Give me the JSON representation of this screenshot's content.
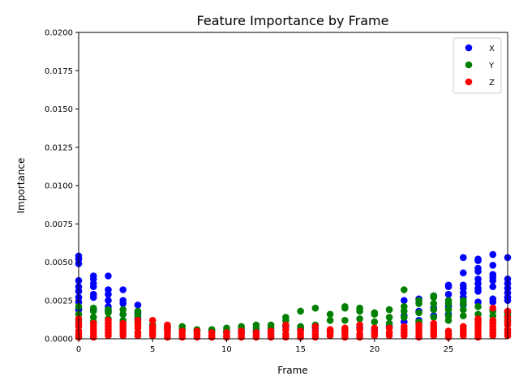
{
  "chart_data": {
    "type": "scatter",
    "title": "Feature Importance by Frame",
    "xlabel": "Frame",
    "ylabel": "Importance",
    "xlim": [
      0,
      29
    ],
    "ylim": [
      0,
      0.02
    ],
    "x_ticks": [
      0,
      5,
      10,
      15,
      20,
      25
    ],
    "x_tick_labels": [
      "0",
      "5",
      "10",
      "15",
      "20",
      "25"
    ],
    "y_ticks": [
      0,
      0.0025,
      0.005,
      0.0075,
      0.01,
      0.0125,
      0.015,
      0.0175,
      0.02
    ],
    "y_tick_labels": [
      "0.0000",
      "0.0025",
      "0.0050",
      "0.0075",
      "0.0100",
      "0.0125",
      "0.0150",
      "0.0175",
      "0.0200"
    ],
    "grid": false,
    "legend_position": "top-right",
    "series": [
      {
        "name": "X",
        "color": "#0000ff",
        "points": [
          [
            0,
            0.0054
          ],
          [
            0,
            0.0052
          ],
          [
            0,
            0.0049
          ],
          [
            0,
            0.0038
          ],
          [
            0,
            0.0034
          ],
          [
            0,
            0.0031
          ],
          [
            0,
            0.0027
          ],
          [
            0,
            0.0024
          ],
          [
            0,
            0.0019
          ],
          [
            1,
            0.0041
          ],
          [
            1,
            0.0039
          ],
          [
            1,
            0.0036
          ],
          [
            1,
            0.0034
          ],
          [
            1,
            0.0029
          ],
          [
            1,
            0.0027
          ],
          [
            1,
            0.0019
          ],
          [
            2,
            0.0041
          ],
          [
            2,
            0.0032
          ],
          [
            2,
            0.0029
          ],
          [
            2,
            0.0025
          ],
          [
            2,
            0.0021
          ],
          [
            2,
            0.0018
          ],
          [
            3,
            0.0032
          ],
          [
            3,
            0.0025
          ],
          [
            3,
            0.0023
          ],
          [
            3,
            0.0016
          ],
          [
            4,
            0.0022
          ],
          [
            4,
            0.0017
          ],
          [
            4,
            0.0013
          ],
          [
            5,
            0.0009
          ],
          [
            6,
            0.0007
          ],
          [
            7,
            0.0005
          ],
          [
            8,
            0.0005
          ],
          [
            9,
            0.0004
          ],
          [
            10,
            0.0004
          ],
          [
            11,
            0.0004
          ],
          [
            12,
            0.0005
          ],
          [
            13,
            0.0005
          ],
          [
            14,
            0.0008
          ],
          [
            15,
            0.0006
          ],
          [
            16,
            0.0007
          ],
          [
            17,
            0.0005
          ],
          [
            18,
            0.0006
          ],
          [
            19,
            0.0007
          ],
          [
            20,
            0.0006
          ],
          [
            21,
            0.0008
          ],
          [
            22,
            0.0025
          ],
          [
            22,
            0.0015
          ],
          [
            22,
            0.0011
          ],
          [
            23,
            0.0026
          ],
          [
            23,
            0.0018
          ],
          [
            23,
            0.0012
          ],
          [
            24,
            0.0028
          ],
          [
            24,
            0.002
          ],
          [
            24,
            0.0015
          ],
          [
            25,
            0.0035
          ],
          [
            25,
            0.0034
          ],
          [
            25,
            0.0029
          ],
          [
            25,
            0.0021
          ],
          [
            25,
            0.0016
          ],
          [
            26,
            0.0053
          ],
          [
            26,
            0.0043
          ],
          [
            26,
            0.0035
          ],
          [
            26,
            0.0033
          ],
          [
            26,
            0.003
          ],
          [
            26,
            0.0027
          ],
          [
            26,
            0.0022
          ],
          [
            27,
            0.0052
          ],
          [
            27,
            0.0051
          ],
          [
            27,
            0.0046
          ],
          [
            27,
            0.0044
          ],
          [
            27,
            0.0039
          ],
          [
            27,
            0.0036
          ],
          [
            27,
            0.0033
          ],
          [
            27,
            0.0031
          ],
          [
            27,
            0.0024
          ],
          [
            28,
            0.0055
          ],
          [
            28,
            0.0048
          ],
          [
            28,
            0.0042
          ],
          [
            28,
            0.004
          ],
          [
            28,
            0.0038
          ],
          [
            28,
            0.0034
          ],
          [
            28,
            0.0026
          ],
          [
            28,
            0.0024
          ],
          [
            29,
            0.0053
          ],
          [
            29,
            0.0039
          ],
          [
            29,
            0.0036
          ],
          [
            29,
            0.0033
          ],
          [
            29,
            0.003
          ],
          [
            29,
            0.0027
          ],
          [
            29,
            0.0025
          ]
        ]
      },
      {
        "name": "Y",
        "color": "#008000",
        "points": [
          [
            0,
            0.0021
          ],
          [
            0,
            0.0016
          ],
          [
            0,
            0.0012
          ],
          [
            1,
            0.002
          ],
          [
            1,
            0.0018
          ],
          [
            1,
            0.0014
          ],
          [
            1,
            0.0011
          ],
          [
            2,
            0.0019
          ],
          [
            2,
            0.0017
          ],
          [
            2,
            0.0013
          ],
          [
            3,
            0.0019
          ],
          [
            3,
            0.0016
          ],
          [
            3,
            0.0012
          ],
          [
            4,
            0.0018
          ],
          [
            4,
            0.0015
          ],
          [
            4,
            0.0011
          ],
          [
            5,
            0.0009
          ],
          [
            5,
            0.0007
          ],
          [
            6,
            0.0008
          ],
          [
            6,
            0.0006
          ],
          [
            7,
            0.0008
          ],
          [
            7,
            0.0006
          ],
          [
            8,
            0.0006
          ],
          [
            8,
            0.0005
          ],
          [
            9,
            0.0006
          ],
          [
            9,
            0.0005
          ],
          [
            10,
            0.0007
          ],
          [
            10,
            0.0005
          ],
          [
            11,
            0.0008
          ],
          [
            11,
            0.0006
          ],
          [
            12,
            0.0009
          ],
          [
            12,
            0.0007
          ],
          [
            13,
            0.0009
          ],
          [
            13,
            0.0007
          ],
          [
            14,
            0.0014
          ],
          [
            14,
            0.0012
          ],
          [
            14,
            0.0009
          ],
          [
            15,
            0.0018
          ],
          [
            15,
            0.0008
          ],
          [
            15,
            0.0007
          ],
          [
            16,
            0.002
          ],
          [
            16,
            0.0009
          ],
          [
            17,
            0.0016
          ],
          [
            17,
            0.0012
          ],
          [
            18,
            0.0021
          ],
          [
            18,
            0.002
          ],
          [
            18,
            0.0012
          ],
          [
            19,
            0.002
          ],
          [
            19,
            0.0018
          ],
          [
            19,
            0.0013
          ],
          [
            20,
            0.0017
          ],
          [
            20,
            0.0016
          ],
          [
            20,
            0.0011
          ],
          [
            21,
            0.0019
          ],
          [
            21,
            0.0014
          ],
          [
            21,
            0.001
          ],
          [
            22,
            0.0032
          ],
          [
            22,
            0.0021
          ],
          [
            22,
            0.0018
          ],
          [
            22,
            0.0014
          ],
          [
            23,
            0.0025
          ],
          [
            23,
            0.0023
          ],
          [
            23,
            0.0017
          ],
          [
            23,
            0.0011
          ],
          [
            24,
            0.0028
          ],
          [
            24,
            0.0027
          ],
          [
            24,
            0.0023
          ],
          [
            24,
            0.0019
          ],
          [
            24,
            0.0014
          ],
          [
            25,
            0.0025
          ],
          [
            25,
            0.0023
          ],
          [
            25,
            0.0019
          ],
          [
            25,
            0.0015
          ],
          [
            25,
            0.0012
          ],
          [
            26,
            0.0025
          ],
          [
            26,
            0.0023
          ],
          [
            26,
            0.0019
          ],
          [
            26,
            0.0015
          ],
          [
            27,
            0.0021
          ],
          [
            27,
            0.0016
          ],
          [
            27,
            0.0012
          ],
          [
            28,
            0.0018
          ],
          [
            28,
            0.0015
          ],
          [
            28,
            0.0012
          ],
          [
            29,
            0.0017
          ],
          [
            29,
            0.0015
          ],
          [
            29,
            0.0012
          ]
        ]
      },
      {
        "name": "Z",
        "color": "#ff0000",
        "points": [
          [
            0,
            0.0013
          ],
          [
            0,
            0.001
          ],
          [
            0,
            0.0008
          ],
          [
            0,
            0.0005
          ],
          [
            0,
            0.0003
          ],
          [
            0,
            0.0001
          ],
          [
            1,
            0.001
          ],
          [
            1,
            0.0008
          ],
          [
            1,
            0.0006
          ],
          [
            1,
            0.0004
          ],
          [
            1,
            0.0002
          ],
          [
            1,
            0.0001
          ],
          [
            2,
            0.0012
          ],
          [
            2,
            0.001
          ],
          [
            2,
            0.0008
          ],
          [
            2,
            0.0006
          ],
          [
            2,
            0.0004
          ],
          [
            2,
            0.0002
          ],
          [
            3,
            0.001
          ],
          [
            3,
            0.0008
          ],
          [
            3,
            0.0006
          ],
          [
            3,
            0.0004
          ],
          [
            3,
            0.0002
          ],
          [
            4,
            0.0012
          ],
          [
            4,
            0.0009
          ],
          [
            4,
            0.0007
          ],
          [
            4,
            0.0004
          ],
          [
            4,
            0.0002
          ],
          [
            5,
            0.0012
          ],
          [
            5,
            0.0008
          ],
          [
            5,
            0.0006
          ],
          [
            5,
            0.0004
          ],
          [
            5,
            0.0002
          ],
          [
            6,
            0.0009
          ],
          [
            6,
            0.0007
          ],
          [
            6,
            0.0005
          ],
          [
            6,
            0.0003
          ],
          [
            6,
            0.0001
          ],
          [
            7,
            0.0005
          ],
          [
            7,
            0.0003
          ],
          [
            7,
            0.0001
          ],
          [
            8,
            0.0005
          ],
          [
            8,
            0.0003
          ],
          [
            8,
            0.0001
          ],
          [
            9,
            0.0004
          ],
          [
            9,
            0.0002
          ],
          [
            9,
            0.0001
          ],
          [
            10,
            0.0004
          ],
          [
            10,
            0.0002
          ],
          [
            10,
            0.0001
          ],
          [
            11,
            0.0005
          ],
          [
            11,
            0.0003
          ],
          [
            11,
            0.0001
          ],
          [
            12,
            0.0004
          ],
          [
            12,
            0.0002
          ],
          [
            12,
            0.0001
          ],
          [
            13,
            0.0005
          ],
          [
            13,
            0.0003
          ],
          [
            13,
            0.0001
          ],
          [
            14,
            0.0009
          ],
          [
            14,
            0.0006
          ],
          [
            14,
            0.0003
          ],
          [
            14,
            0.0001
          ],
          [
            15,
            0.0005
          ],
          [
            15,
            0.0003
          ],
          [
            15,
            0.0001
          ],
          [
            16,
            0.0008
          ],
          [
            16,
            0.0005
          ],
          [
            16,
            0.0003
          ],
          [
            16,
            0.0001
          ],
          [
            17,
            0.0006
          ],
          [
            17,
            0.0004
          ],
          [
            17,
            0.0002
          ],
          [
            18,
            0.0007
          ],
          [
            18,
            0.0005
          ],
          [
            18,
            0.0003
          ],
          [
            18,
            0.0001
          ],
          [
            19,
            0.0009
          ],
          [
            19,
            0.0006
          ],
          [
            19,
            0.0003
          ],
          [
            19,
            0.0001
          ],
          [
            20,
            0.0007
          ],
          [
            20,
            0.0004
          ],
          [
            20,
            0.0002
          ],
          [
            21,
            0.0007
          ],
          [
            21,
            0.0004
          ],
          [
            21,
            0.0002
          ],
          [
            22,
            0.0008
          ],
          [
            22,
            0.0006
          ],
          [
            22,
            0.0004
          ],
          [
            22,
            0.0002
          ],
          [
            23,
            0.0009
          ],
          [
            23,
            0.0007
          ],
          [
            23,
            0.0005
          ],
          [
            23,
            0.0003
          ],
          [
            23,
            0.0001
          ],
          [
            24,
            0.001
          ],
          [
            24,
            0.0008
          ],
          [
            24,
            0.0006
          ],
          [
            24,
            0.0004
          ],
          [
            24,
            0.0002
          ],
          [
            25,
            0.0005
          ],
          [
            25,
            0.0003
          ],
          [
            25,
            0.0001
          ],
          [
            26,
            0.0008
          ],
          [
            26,
            0.0006
          ],
          [
            26,
            0.0004
          ],
          [
            26,
            0.0002
          ],
          [
            27,
            0.0013
          ],
          [
            27,
            0.0011
          ],
          [
            27,
            0.0009
          ],
          [
            27,
            0.0007
          ],
          [
            27,
            0.0005
          ],
          [
            27,
            0.0003
          ],
          [
            27,
            0.0001
          ],
          [
            28,
            0.002
          ],
          [
            28,
            0.0012
          ],
          [
            28,
            0.001
          ],
          [
            28,
            0.0008
          ],
          [
            28,
            0.0006
          ],
          [
            28,
            0.0004
          ],
          [
            28,
            0.0002
          ],
          [
            29,
            0.0018
          ],
          [
            29,
            0.0014
          ],
          [
            29,
            0.0011
          ],
          [
            29,
            0.0009
          ],
          [
            29,
            0.0006
          ],
          [
            29,
            0.0004
          ],
          [
            29,
            0.0002
          ]
        ]
      }
    ]
  }
}
